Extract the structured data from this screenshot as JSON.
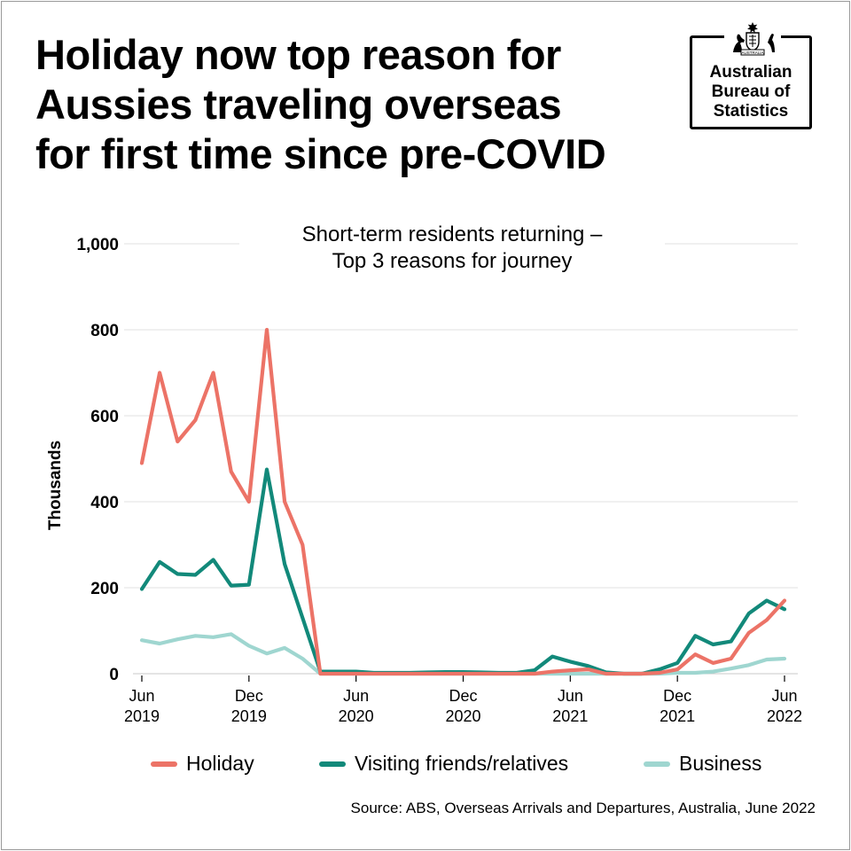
{
  "headline": {
    "lines": [
      "Holiday now top reason for",
      "Aussies traveling overseas",
      "for first time since pre-COVID"
    ]
  },
  "logo": {
    "lines": [
      "Australian",
      "Bureau of",
      "Statistics"
    ],
    "crest_text": "AUSTRALIA",
    "icon": "coat-of-arms-icon"
  },
  "colors": {
    "holiday": "#ec7367",
    "visiting": "#12897a",
    "business": "#9fd6d0",
    "grid": "#e1e1e1"
  },
  "legend": {
    "holiday": "Holiday",
    "visiting": "Visiting friends/relatives",
    "business": "Business"
  },
  "source": "Source: ABS, Overseas Arrivals and Departures, Australia, June 2022",
  "chart_data": {
    "type": "line",
    "title": "Short-term residents returning – Top 3 reasons for journey",
    "title_lines": [
      "Short-term residents returning –",
      "Top 3 reasons for journey"
    ],
    "ylabel": "Thousands",
    "xlabel": "",
    "ylim": [
      0,
      1000
    ],
    "yticks": [
      "0",
      "200",
      "400",
      "600",
      "800",
      "1,000"
    ],
    "ytick_values": [
      0,
      200,
      400,
      600,
      800,
      1000
    ],
    "grid": true,
    "legend_position": "bottom",
    "x": [
      "2019-06",
      "2019-07",
      "2019-08",
      "2019-09",
      "2019-10",
      "2019-11",
      "2019-12",
      "2020-01",
      "2020-02",
      "2020-03",
      "2020-04",
      "2020-05",
      "2020-06",
      "2020-07",
      "2020-08",
      "2020-09",
      "2020-10",
      "2020-11",
      "2020-12",
      "2021-01",
      "2021-02",
      "2021-03",
      "2021-04",
      "2021-05",
      "2021-06",
      "2021-07",
      "2021-08",
      "2021-09",
      "2021-10",
      "2021-11",
      "2021-12",
      "2022-01",
      "2022-02",
      "2022-03",
      "2022-04",
      "2022-05",
      "2022-06"
    ],
    "xticks": [
      {
        "index": 0,
        "month": "Jun",
        "year": "2019"
      },
      {
        "index": 6,
        "month": "Dec",
        "year": "2019"
      },
      {
        "index": 12,
        "month": "Jun",
        "year": "2020"
      },
      {
        "index": 18,
        "month": "Dec",
        "year": "2020"
      },
      {
        "index": 24,
        "month": "Jun",
        "year": "2021"
      },
      {
        "index": 30,
        "month": "Dec",
        "year": "2021"
      },
      {
        "index": 36,
        "month": "Jun",
        "year": "2022"
      }
    ],
    "series": [
      {
        "name": "Holiday",
        "values": [
          490,
          700,
          540,
          590,
          700,
          470,
          400,
          800,
          400,
          300,
          0,
          0,
          0,
          0,
          0,
          0,
          0,
          0,
          0,
          0,
          0,
          0,
          0,
          5,
          8,
          10,
          0,
          0,
          0,
          2,
          10,
          45,
          25,
          35,
          95,
          125,
          170
        ]
      },
      {
        "name": "Visiting friends/relatives",
        "values": [
          197,
          260,
          232,
          230,
          265,
          205,
          207,
          475,
          255,
          130,
          5,
          5,
          5,
          2,
          2,
          2,
          3,
          4,
          4,
          3,
          2,
          2,
          8,
          40,
          28,
          18,
          3,
          0,
          0,
          10,
          25,
          88,
          68,
          75,
          140,
          170,
          150
        ]
      },
      {
        "name": "Business",
        "values": [
          78,
          70,
          80,
          88,
          85,
          92,
          65,
          47,
          60,
          35,
          0,
          0,
          0,
          0,
          0,
          0,
          0,
          0,
          0,
          0,
          0,
          0,
          0,
          0,
          0,
          0,
          0,
          0,
          0,
          0,
          2,
          2,
          5,
          12,
          20,
          33,
          35
        ]
      }
    ]
  }
}
